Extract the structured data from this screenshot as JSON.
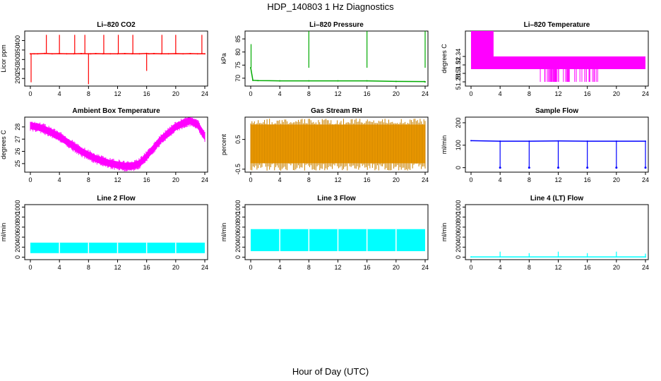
{
  "figure": {
    "title": "HDP_140803  1 Hz Diagnostics",
    "xlabel": "Hour of Day (UTC)"
  },
  "chart_data": [
    {
      "type": "line",
      "title": "Li–820 CO2",
      "ylabel": "Licor ppm",
      "color": "#ff0000",
      "xlim": [
        0,
        24
      ],
      "ylim": [
        160,
        450
      ],
      "xticks": [
        0,
        4,
        8,
        12,
        16,
        20,
        24
      ],
      "yticks": [
        200,
        250,
        300,
        350,
        400
      ],
      "x": [
        0,
        0.5,
        1,
        2,
        3,
        4,
        5,
        6,
        7,
        8,
        8.3,
        9,
        10,
        11,
        12,
        13,
        14,
        15,
        16,
        16.3,
        17,
        18,
        19,
        20,
        21,
        22,
        23,
        24
      ],
      "y": [
        330,
        330,
        330,
        332,
        330,
        331,
        330,
        330,
        331,
        330,
        330,
        331,
        330,
        330,
        330,
        331,
        330,
        330,
        332,
        330,
        331,
        330,
        330,
        331,
        330,
        331,
        330,
        330
      ],
      "spikes": [
        {
          "x": 0.1,
          "y": 180
        },
        {
          "x": 2.2,
          "y": 430
        },
        {
          "x": 4,
          "y": 430
        },
        {
          "x": 6.1,
          "y": 430
        },
        {
          "x": 7.5,
          "y": 430
        },
        {
          "x": 8,
          "y": 170
        },
        {
          "x": 10.1,
          "y": 430
        },
        {
          "x": 12.1,
          "y": 430
        },
        {
          "x": 14.1,
          "y": 430
        },
        {
          "x": 16,
          "y": 240
        },
        {
          "x": 18.1,
          "y": 430
        },
        {
          "x": 20,
          "y": 430
        },
        {
          "x": 23.6,
          "y": 430
        }
      ]
    },
    {
      "type": "line",
      "title": "Li–820 Pressure",
      "ylabel": "kPa",
      "color": "#00aa00",
      "xlim": [
        0,
        24
      ],
      "ylim": [
        67,
        88
      ],
      "xticks": [
        0,
        4,
        8,
        12,
        16,
        20,
        24
      ],
      "yticks": [
        70,
        75,
        80,
        85
      ],
      "x": [
        0,
        0.3,
        1,
        4,
        8,
        12,
        16,
        20,
        23.9,
        24
      ],
      "y": [
        74,
        69.2,
        69.1,
        69,
        69,
        69,
        69,
        68.8,
        68.7,
        68.6
      ],
      "spikes": [
        {
          "x": 0.05,
          "y": 83
        },
        {
          "x": 8,
          "y": 88
        },
        {
          "x": 16,
          "y": 88
        },
        {
          "x": 24,
          "y": 88
        }
      ]
    },
    {
      "type": "area",
      "title": "Li–820 Temperature",
      "ylabel": "degrees C",
      "color": "#ff00ff",
      "xlim": [
        0,
        24
      ],
      "ylim": [
        51.27,
        51.4
      ],
      "xticks": [
        0,
        4,
        8,
        12,
        16,
        20,
        24
      ],
      "yticks": [
        51.28,
        51.3,
        51.32,
        51.34
      ],
      "band": {
        "x": [
          0,
          24
        ],
        "low": 51.31,
        "high": 51.34
      },
      "upper_burst": {
        "x": [
          0,
          3.1
        ],
        "low": 51.34,
        "high": 51.4
      },
      "lower_burst": {
        "x": [
          9.5,
          17.8
        ],
        "low": 51.28,
        "high": 51.31
      }
    },
    {
      "type": "area",
      "title": "Ambient Box Temperature",
      "ylabel": "degrees C",
      "color": "#ff00ff",
      "xlim": [
        0,
        24
      ],
      "ylim": [
        24.3,
        28.8
      ],
      "xticks": [
        0,
        4,
        8,
        12,
        16,
        20,
        24
      ],
      "yticks": [
        25,
        26,
        27,
        28
      ],
      "x": [
        0,
        1,
        2,
        3,
        4,
        5,
        6,
        7,
        8,
        9,
        10,
        11,
        12,
        13,
        14,
        15,
        16,
        17,
        18,
        19,
        20,
        21,
        22,
        23,
        24
      ],
      "y": [
        28.1,
        28.0,
        27.8,
        27.5,
        27.2,
        26.8,
        26.4,
        26.0,
        25.7,
        25.4,
        25.2,
        25.0,
        24.9,
        24.8,
        24.8,
        25.0,
        25.6,
        26.3,
        27.0,
        27.5,
        28.0,
        28.3,
        28.5,
        28.2,
        27.2
      ],
      "spread": 0.25
    },
    {
      "type": "area",
      "title": "Gas Stream RH",
      "ylabel": "percent",
      "color": "#ffa500",
      "xlim": [
        0,
        24
      ],
      "ylim": [
        -0.6,
        1.25
      ],
      "xticks": [
        0,
        4,
        8,
        12,
        16,
        20,
        24
      ],
      "yticks": [
        -0.5,
        0.5
      ],
      "band": {
        "x": [
          0,
          24
        ],
        "low": -0.3,
        "high": 1.0
      }
    },
    {
      "type": "line",
      "title": "Sample Flow",
      "ylabel": "ml/min",
      "color": "#0000ff",
      "xlim": [
        0,
        24
      ],
      "ylim": [
        -20,
        225
      ],
      "xticks": [
        0,
        4,
        8,
        12,
        16,
        20,
        24
      ],
      "yticks": [
        0,
        100,
        200
      ],
      "x": [
        0,
        4,
        8,
        12,
        16,
        20,
        24
      ],
      "y": [
        120,
        118,
        118,
        119,
        118,
        118,
        118
      ],
      "dips": [
        {
          "x": 4,
          "y": 0
        },
        {
          "x": 8,
          "y": 0
        },
        {
          "x": 12,
          "y": 0
        },
        {
          "x": 16,
          "y": 0
        },
        {
          "x": 20,
          "y": 0
        },
        {
          "x": 24,
          "y": 0
        }
      ]
    },
    {
      "type": "area",
      "title": "Line 2 Flow",
      "ylabel": "ml/min",
      "color": "#00ffff",
      "xlim": [
        0,
        24
      ],
      "ylim": [
        -50,
        1050
      ],
      "xticks": [
        0,
        4,
        8,
        12,
        16,
        20,
        24
      ],
      "yticks": [
        0,
        200,
        400,
        600,
        800,
        1000
      ],
      "band": {
        "x": [
          0,
          24
        ],
        "low": 80,
        "high": 290
      }
    },
    {
      "type": "area",
      "title": "Line 3 Flow",
      "ylabel": "ml/min",
      "color": "#00ffff",
      "xlim": [
        0,
        24
      ],
      "ylim": [
        -50,
        1050
      ],
      "xticks": [
        0,
        4,
        8,
        12,
        16,
        20,
        24
      ],
      "yticks": [
        0,
        200,
        400,
        600,
        800,
        1000
      ],
      "band": {
        "x": [
          0,
          24
        ],
        "low": 120,
        "high": 560
      }
    },
    {
      "type": "line",
      "title": "Line 4 (LT) Flow",
      "ylabel": "ml/min",
      "color": "#00ffff",
      "xlim": [
        0,
        24
      ],
      "ylim": [
        -50,
        1050
      ],
      "xticks": [
        0,
        4,
        8,
        12,
        16,
        20,
        24
      ],
      "yticks": [
        0,
        200,
        400,
        600,
        800,
        1000
      ],
      "x": [
        0,
        24
      ],
      "y": [
        5,
        5
      ],
      "spikes": [
        {
          "x": 4,
          "y": 110
        },
        {
          "x": 8,
          "y": 80
        },
        {
          "x": 12,
          "y": 110
        },
        {
          "x": 16,
          "y": 80
        },
        {
          "x": 20,
          "y": 110
        },
        {
          "x": 24,
          "y": 70
        }
      ]
    }
  ]
}
